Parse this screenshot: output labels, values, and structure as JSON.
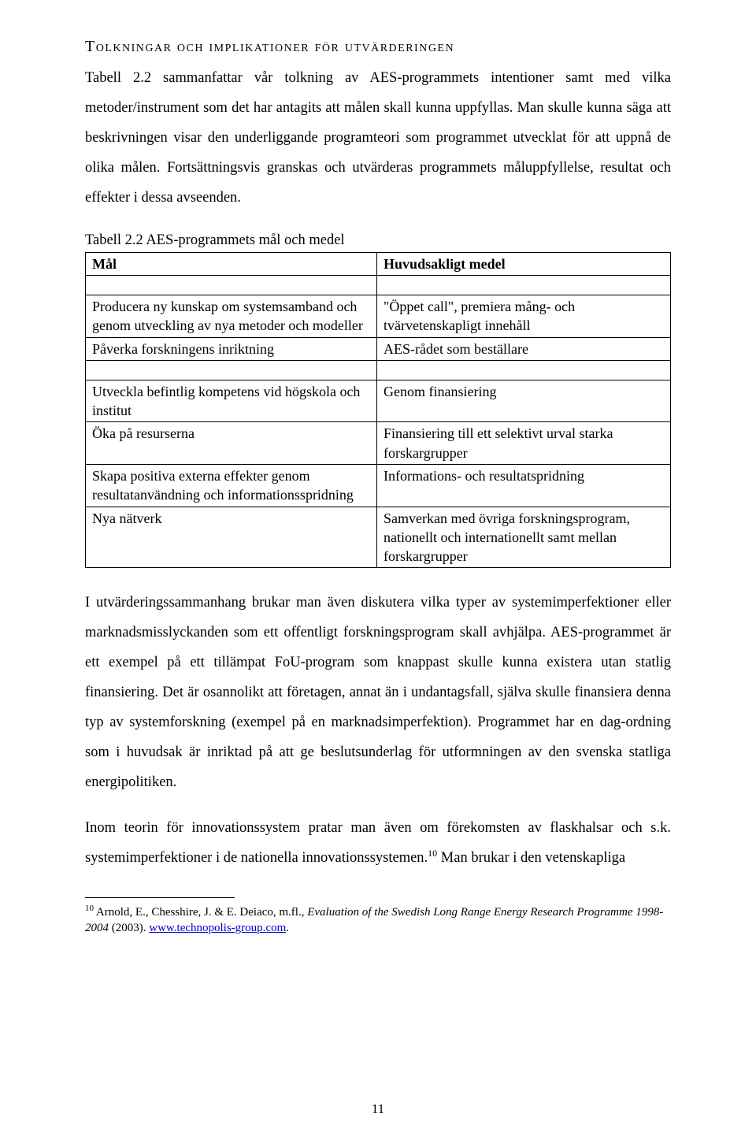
{
  "heading": "Tolkningar och implikationer för utvärderingen",
  "para1": "Tabell 2.2 sammanfattar vår tolkning av AES-programmets intentioner samt med vilka metoder/instrument som det har antagits att målen skall kunna uppfyllas. Man skulle kunna säga att beskrivningen visar den underliggande programteori som programmet utvecklat för att uppnå de olika målen. Fortsättningsvis granskas och utvärderas programmets måluppfyllelse, resultat och effekter i dessa avseenden.",
  "tableCaption": "Tabell 2.2 AES-programmets mål och medel",
  "table": {
    "header": {
      "col1": "Mål",
      "col2": "Huvudsakligt medel"
    },
    "rows": [
      {
        "c1": "Producera ny kunskap om systemsamband och genom utveckling av nya metoder och modeller",
        "c2": "\"Öppet call\", premiera mång- och tvärvetenskapligt innehåll"
      },
      {
        "c1": "Påverka forskningens inriktning",
        "c2": "AES-rådet som beställare"
      },
      {
        "c1": "Utveckla befintlig kompetens vid högskola och institut",
        "c2": "Genom finansiering"
      },
      {
        "c1": "Öka på resurserna",
        "c2": "Finansiering till ett selektivt urval starka forskargrupper"
      },
      {
        "c1": "Skapa positiva externa effekter genom resultatanvändning och informationsspridning",
        "c2": "Informations- och resultatspridning"
      },
      {
        "c1": "Nya nätverk",
        "c2": "Samverkan med övriga forskningsprogram, nationellt och internationellt samt mellan forskargrupper"
      }
    ]
  },
  "para2": "I utvärderingssammanhang brukar man även diskutera vilka typer av systemimperfektioner eller marknadsmisslyckanden som ett offentligt forskningsprogram skall avhjälpa. AES-programmet är ett exempel på ett tillämpat FoU-program som knappast skulle kunna existera utan statlig finansiering. Det är osannolikt att företagen, annat än i undantagsfall, själva skulle finansiera denna typ av systemforskning (exempel på en marknadsimperfektion). Programmet har en dag-ordning som i huvudsak är inriktad på att ge beslutsunderlag för utformningen av den svenska statliga energipolitiken.",
  "para3_a": "Inom teorin för innovationssystem pratar man även om förekomsten av flaskhalsar och s.k. systemimperfektioner i de nationella innovationssystemen.",
  "para3_sup": "10",
  "para3_b": " Man brukar i den vetenskapliga",
  "footnote": {
    "num": "10",
    "textA": " Arnold, E., Chesshire, J.  & E. Deiaco, m.fl., ",
    "italic": "Evaluation of the Swedish Long Range Energy Research Programme 1998-2004",
    "textB": " (2003). ",
    "link": "www.technopolis-group.com",
    "textC": "."
  },
  "pageNumber": "11"
}
